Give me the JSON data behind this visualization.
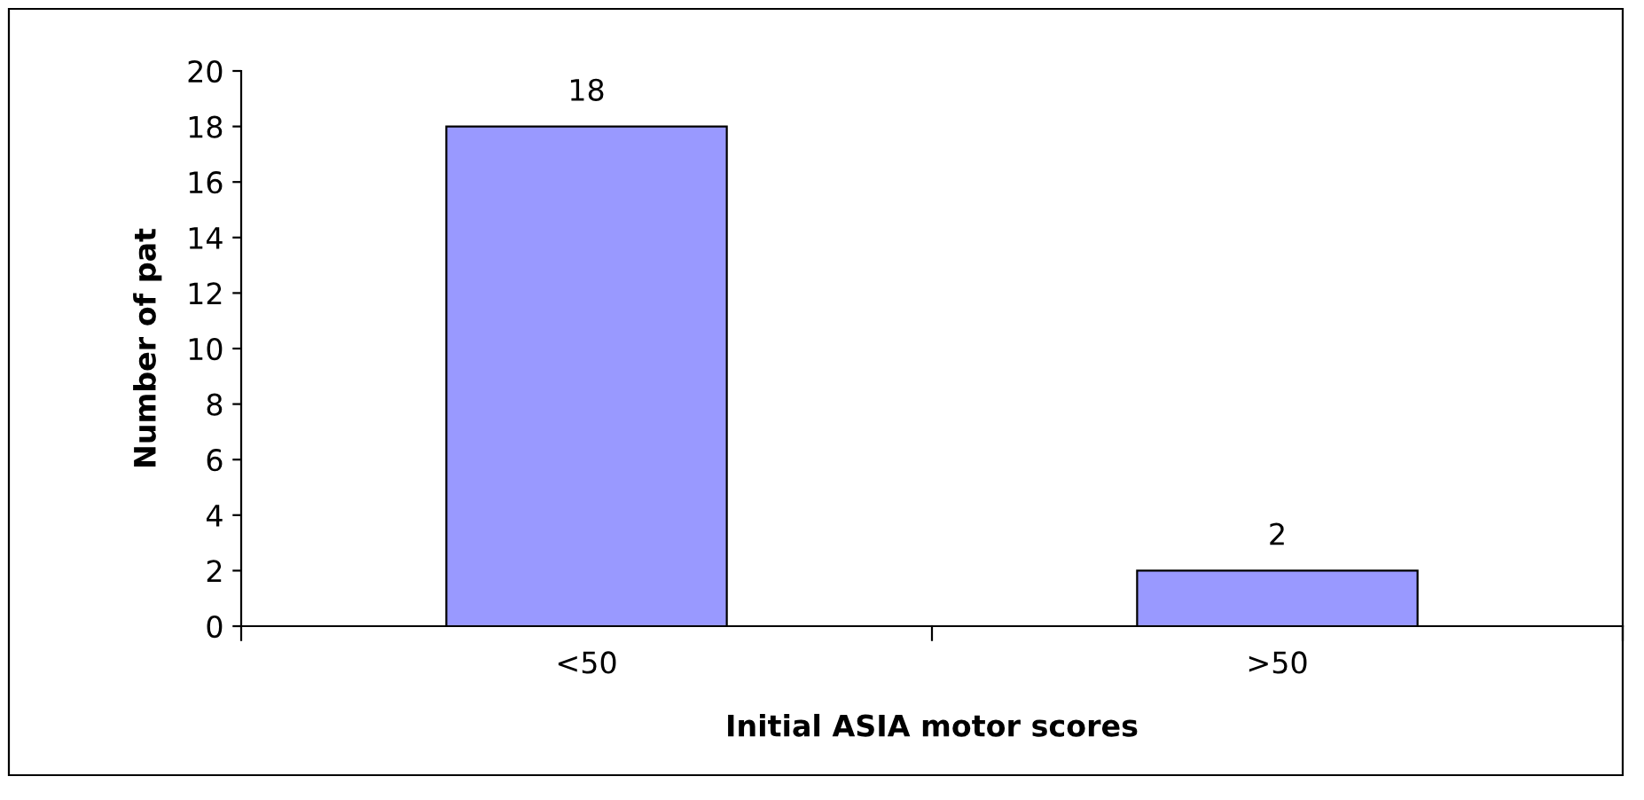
{
  "chart_data": {
    "type": "bar",
    "xlabel": "Initial ASIA motor scores",
    "ylabel": "Number of pat",
    "categories": [
      "<50",
      ">50"
    ],
    "values": [
      18,
      2
    ],
    "color": "#9999ff",
    "ylim": [
      0,
      20
    ],
    "yticks": [
      0,
      2,
      4,
      6,
      8,
      10,
      12,
      14,
      16,
      18,
      20
    ],
    "data_labels": true,
    "grid": false,
    "legend": false
  }
}
